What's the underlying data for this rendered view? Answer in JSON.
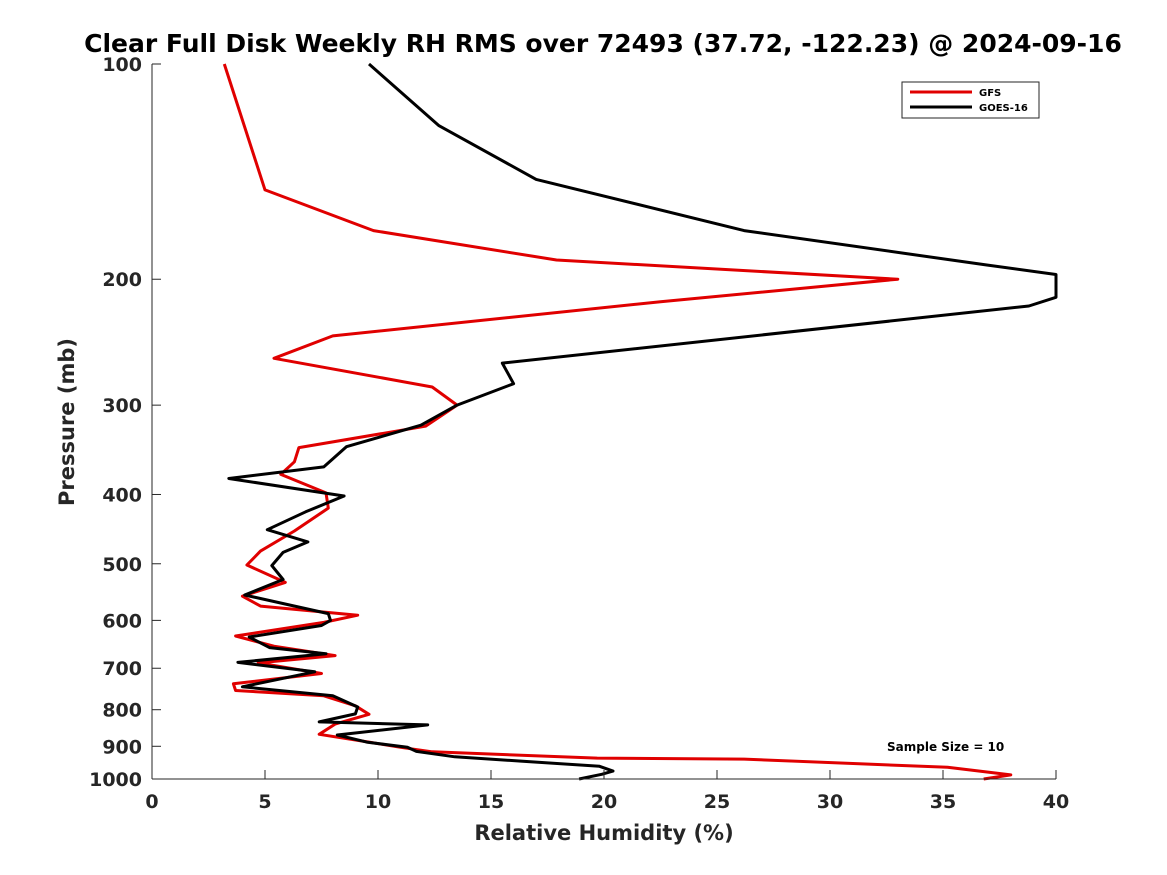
{
  "chart_data": {
    "type": "line",
    "title": "Clear Full Disk Weekly RH RMS over 72493 (37.72, -122.23) @ 2024-09-16",
    "xlabel": "Relative Humidity (%)",
    "ylabel": "Pressure (mb)",
    "xlim": [
      0,
      40
    ],
    "ylim": [
      100,
      1000
    ],
    "y_scale": "log",
    "y_reversed": true,
    "grid": false,
    "legend_position": "top-right",
    "x_ticks": [
      0,
      5,
      10,
      15,
      20,
      25,
      30,
      35,
      40
    ],
    "y_ticks": [
      100,
      200,
      300,
      400,
      500,
      600,
      700,
      800,
      900,
      1000
    ],
    "x_tick_labels": [
      "0",
      "5",
      "10",
      "15",
      "20",
      "25",
      "30",
      "35",
      "40"
    ],
    "y_tick_labels": [
      "100",
      "200",
      "300",
      "400",
      "500",
      "600",
      "700",
      "800",
      "900",
      "1000"
    ],
    "annotation": "Sample Size = 10",
    "series": [
      {
        "name": "GFS",
        "color": "#e00000",
        "points": [
          [
            3.2,
            100
          ],
          [
            5.0,
            150
          ],
          [
            9.8,
            171
          ],
          [
            17.9,
            188
          ],
          [
            33.0,
            200
          ],
          [
            22.5,
            215
          ],
          [
            8.0,
            240
          ],
          [
            5.4,
            258
          ],
          [
            12.4,
            283
          ],
          [
            13.5,
            300
          ],
          [
            12.1,
            321
          ],
          [
            6.5,
            344
          ],
          [
            6.3,
            360
          ],
          [
            5.7,
            375
          ],
          [
            7.7,
            398
          ],
          [
            7.8,
            418
          ],
          [
            6.3,
            450
          ],
          [
            4.8,
            480
          ],
          [
            4.2,
            502
          ],
          [
            5.9,
            531
          ],
          [
            4.0,
            555
          ],
          [
            4.8,
            573
          ],
          [
            9.1,
            590
          ],
          [
            7.6,
            604
          ],
          [
            3.7,
            631
          ],
          [
            5.4,
            652
          ],
          [
            8.1,
            672
          ],
          [
            4.7,
            688
          ],
          [
            7.5,
            712
          ],
          [
            3.6,
            736
          ],
          [
            3.7,
            752
          ],
          [
            7.6,
            765
          ],
          [
            9.0,
            790
          ],
          [
            9.6,
            812
          ],
          [
            8.1,
            838
          ],
          [
            7.4,
            866
          ],
          [
            9.6,
            888
          ],
          [
            11.0,
            903
          ],
          [
            12.4,
            916
          ],
          [
            19.7,
            935
          ],
          [
            26.2,
            938
          ],
          [
            35.2,
            963
          ],
          [
            38.0,
            987
          ],
          [
            36.8,
            1000
          ]
        ]
      },
      {
        "name": "GOES-16",
        "color": "#000000",
        "points": [
          [
            9.6,
            100
          ],
          [
            12.7,
            122
          ],
          [
            17.0,
            145
          ],
          [
            26.2,
            171
          ],
          [
            36.9,
            191
          ],
          [
            40.0,
            197
          ],
          [
            40.0,
            212
          ],
          [
            38.8,
            218
          ],
          [
            15.5,
            262
          ],
          [
            16.0,
            280
          ],
          [
            13.5,
            300
          ],
          [
            11.9,
            320
          ],
          [
            8.6,
            343
          ],
          [
            7.6,
            366
          ],
          [
            3.4,
            380
          ],
          [
            8.5,
            402
          ],
          [
            6.8,
            423
          ],
          [
            5.1,
            448
          ],
          [
            6.9,
            466
          ],
          [
            5.8,
            482
          ],
          [
            5.3,
            503
          ],
          [
            5.8,
            526
          ],
          [
            4.1,
            553
          ],
          [
            7.8,
            587
          ],
          [
            7.9,
            600
          ],
          [
            7.5,
            610
          ],
          [
            4.3,
            633
          ],
          [
            5.2,
            655
          ],
          [
            7.7,
            668
          ],
          [
            3.8,
            687
          ],
          [
            7.2,
            708
          ],
          [
            4.0,
            743
          ],
          [
            8.0,
            765
          ],
          [
            9.1,
            793
          ],
          [
            9.0,
            811
          ],
          [
            7.4,
            832
          ],
          [
            12.2,
            840
          ],
          [
            8.2,
            868
          ],
          [
            9.5,
            888
          ],
          [
            11.3,
            903
          ],
          [
            11.7,
            915
          ],
          [
            13.4,
            931
          ],
          [
            19.8,
            960
          ],
          [
            20.4,
            975
          ],
          [
            19.9,
            985
          ],
          [
            18.9,
            1000
          ]
        ]
      }
    ]
  }
}
